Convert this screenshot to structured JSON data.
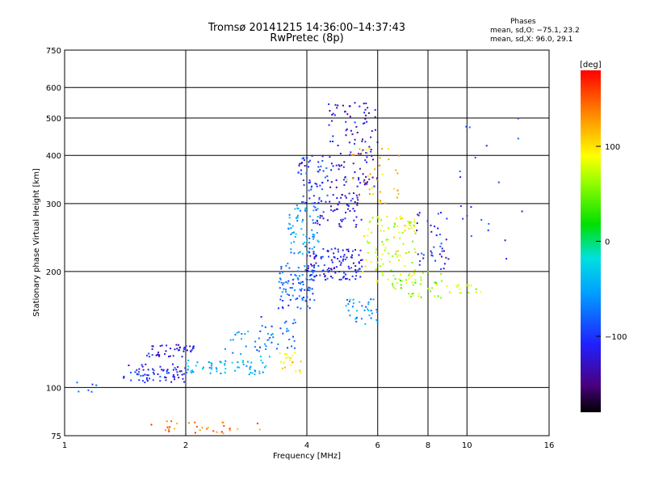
{
  "chart_title": "Tromsø 20141215 14:36:00–14:37:43",
  "chart_subtitle": "RwPretec (8p)",
  "phase_stats": {
    "heading": "Phases",
    "line_o": "mean, sd,O: −75.1, 23.2",
    "line_x": "mean, sd,X:  96.0, 29.1"
  },
  "colorbar": {
    "unit_label": "[deg]",
    "ticks": [
      "100",
      "0",
      "−100"
    ],
    "tick_values": [
      100,
      0,
      -100
    ],
    "range": [
      -180,
      180
    ]
  },
  "chart_data": {
    "type": "scatter",
    "title": "Tromsø 20141215 14:36:00–14:37:43",
    "subtitle": "RwPretec (8p)",
    "xlabel": "Frequency [MHz]",
    "ylabel": "Stationary phase Virtual Height [km]",
    "xscale": "log",
    "yscale": "log",
    "xlim": [
      1,
      16
    ],
    "ylim": [
      75,
      750
    ],
    "xticks": [
      1,
      2,
      4,
      6,
      8,
      10,
      16
    ],
    "xtick_labels": [
      "1",
      "2",
      "4",
      "6",
      "8",
      "10",
      "16"
    ],
    "yticks": [
      75,
      100,
      200,
      300,
      400,
      500,
      600,
      750
    ],
    "ytick_labels": [
      "75",
      "100",
      "200",
      "300",
      "400",
      "500",
      "600",
      "750"
    ],
    "grid": true,
    "color_dimension": "phase [deg]",
    "clusters": [
      {
        "f_range": [
          1.05,
          1.2
        ],
        "h_range": [
          96,
          104
        ],
        "phase": -90,
        "n": 6
      },
      {
        "f_range": [
          1.4,
          2.0
        ],
        "h_range": [
          103,
          115
        ],
        "phase": -110,
        "n": 70
      },
      {
        "f_range": [
          1.6,
          2.1
        ],
        "h_range": [
          120,
          130
        ],
        "phase": -120,
        "n": 45
      },
      {
        "f_range": [
          2.0,
          3.2
        ],
        "h_range": [
          108,
          118
        ],
        "phase": -40,
        "n": 60
      },
      {
        "f_range": [
          2.5,
          3.3
        ],
        "h_range": [
          120,
          140
        ],
        "phase": -60,
        "n": 25
      },
      {
        "f_range": [
          3.0,
          3.8
        ],
        "h_range": [
          125,
          155
        ],
        "phase": -90,
        "n": 30
      },
      {
        "f_range": [
          3.4,
          3.9
        ],
        "h_range": [
          108,
          125
        ],
        "phase": 110,
        "n": 20
      },
      {
        "f_range": [
          3.4,
          4.2
        ],
        "h_range": [
          160,
          210
        ],
        "phase": -80,
        "n": 90
      },
      {
        "f_range": [
          3.6,
          4.3
        ],
        "h_range": [
          220,
          300
        ],
        "phase": -50,
        "n": 70
      },
      {
        "f_range": [
          3.8,
          4.5
        ],
        "h_range": [
          300,
          400
        ],
        "phase": -100,
        "n": 60
      },
      {
        "f_range": [
          4.0,
          5.5
        ],
        "h_range": [
          190,
          230
        ],
        "phase": -110,
        "n": 120
      },
      {
        "f_range": [
          4.2,
          5.5
        ],
        "h_range": [
          260,
          320
        ],
        "phase": -120,
        "n": 60
      },
      {
        "f_range": [
          4.5,
          6.0
        ],
        "h_range": [
          330,
          550
        ],
        "phase": -125,
        "n": 110
      },
      {
        "f_range": [
          5.0,
          6.0
        ],
        "h_range": [
          145,
          170
        ],
        "phase": -60,
        "n": 35
      },
      {
        "f_range": [
          5.5,
          7.5
        ],
        "h_range": [
          180,
          280
        ],
        "phase": 80,
        "n": 110
      },
      {
        "f_range": [
          5.0,
          6.8
        ],
        "h_range": [
          300,
          420
        ],
        "phase": 120,
        "n": 40
      },
      {
        "f_range": [
          6.5,
          9.0
        ],
        "h_range": [
          170,
          200
        ],
        "phase": 60,
        "n": 40
      },
      {
        "f_range": [
          7.5,
          9.0
        ],
        "h_range": [
          200,
          290
        ],
        "phase": -110,
        "n": 40
      },
      {
        "f_range": [
          9.0,
          11.0
        ],
        "h_range": [
          175,
          185
        ],
        "phase": 70,
        "n": 15
      },
      {
        "f_range": [
          1.6,
          3.3
        ],
        "h_range": [
          76,
          82
        ],
        "phase": 140,
        "n": 30
      },
      {
        "f_range": [
          9.5,
          14.0
        ],
        "h_range": [
          200,
          500
        ],
        "phase": -100,
        "n": 20
      }
    ]
  }
}
